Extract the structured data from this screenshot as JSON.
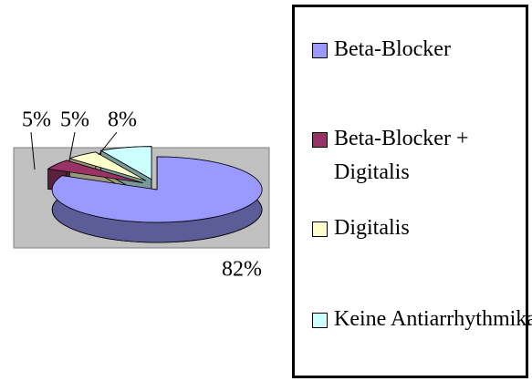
{
  "chart_data": {
    "type": "pie3d",
    "categories": [
      "Beta-Blocker",
      "Beta-Blocker + Digitalis",
      "Digitalis",
      "Keine Antiarrhythmika"
    ],
    "values": [
      82,
      5,
      5,
      8
    ],
    "value_labels": [
      "82%",
      "5%",
      "5%",
      "8%"
    ],
    "colors": [
      "#9999ff",
      "#993366",
      "#ffffcc",
      "#ccffff"
    ],
    "legend": "right"
  }
}
